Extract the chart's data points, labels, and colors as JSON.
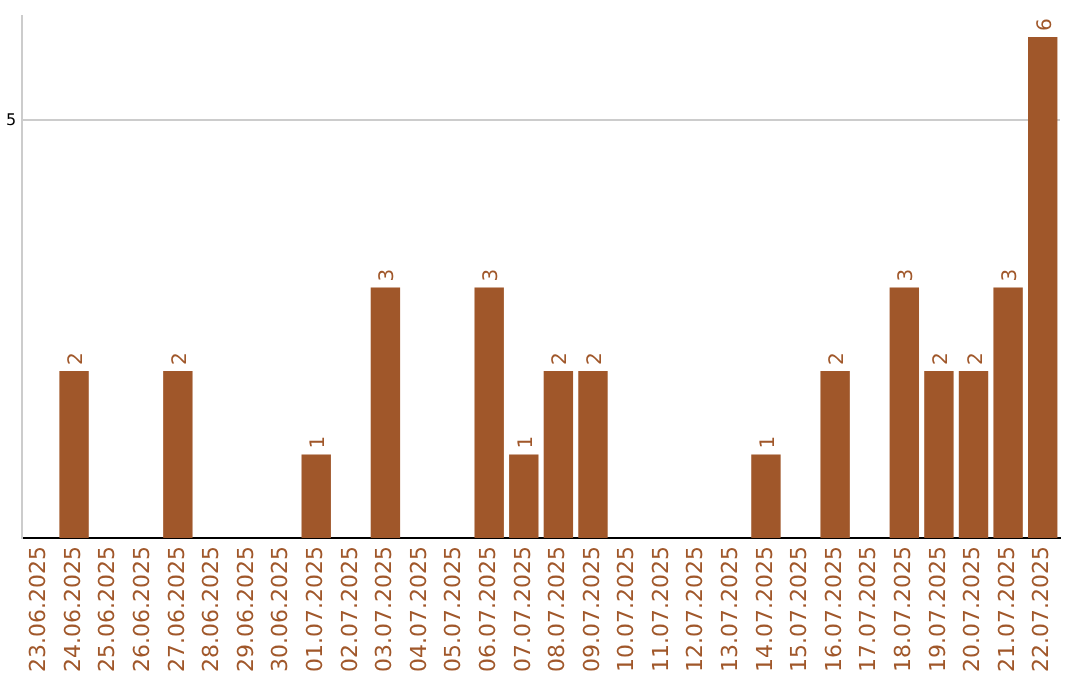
{
  "chart_data": {
    "type": "bar",
    "categories": [
      "23.06.2025",
      "24.06.2025",
      "25.06.2025",
      "26.06.2025",
      "27.06.2025",
      "28.06.2025",
      "29.06.2025",
      "30.06.2025",
      "01.07.2025",
      "02.07.2025",
      "03.07.2025",
      "04.07.2025",
      "05.07.2025",
      "06.07.2025",
      "07.07.2025",
      "08.07.2025",
      "09.07.2025",
      "10.07.2025",
      "11.07.2025",
      "12.07.2025",
      "13.07.2025",
      "14.07.2025",
      "15.07.2025",
      "16.07.2025",
      "17.07.2025",
      "18.07.2025",
      "19.07.2025",
      "20.07.2025",
      "21.07.2025",
      "22.07.2025"
    ],
    "values": [
      0,
      2,
      0,
      0,
      2,
      0,
      0,
      0,
      1,
      0,
      3,
      0,
      0,
      3,
      1,
      2,
      2,
      0,
      0,
      0,
      0,
      1,
      0,
      2,
      0,
      3,
      2,
      2,
      3,
      6
    ],
    "value_labels": [
      null,
      "2",
      null,
      null,
      "2",
      null,
      null,
      null,
      "1",
      null,
      "3",
      null,
      null,
      "3",
      "1",
      "2",
      "2",
      null,
      null,
      null,
      null,
      "1",
      null,
      "2",
      null,
      "3",
      "2",
      "2",
      "3",
      "6"
    ],
    "color": "#a0572a",
    "ylim": [
      0,
      6.25
    ],
    "yticks": [
      5
    ],
    "grid": "y",
    "legend": false
  }
}
